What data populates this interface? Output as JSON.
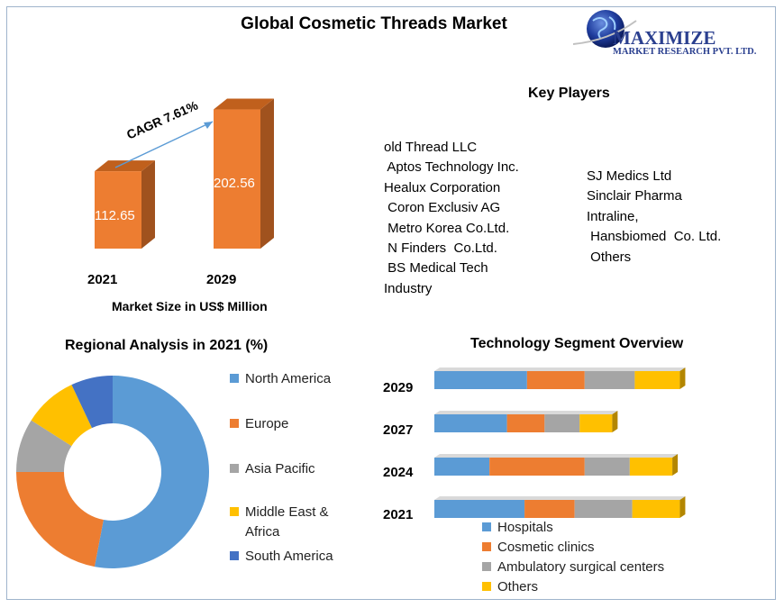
{
  "title": "Global Cosmetic Threads Market",
  "logo": {
    "name": "MAXIMIZE",
    "tagline": "MARKET RESEARCH PVT. LTD."
  },
  "market_size": {
    "cagr_label": "CAGR 7.61%",
    "caption": "Market Size in US$ Million"
  },
  "key_players": {
    "title": "Key Players",
    "column1": [
      "old Thread LLC",
      " Aptos Technology Inc.",
      "Healux Corporation",
      " Coron Exclusiv AG",
      " Metro Korea Co.Ltd.",
      " N Finders  Co.Ltd.",
      " BS Medical Tech",
      "Industry"
    ],
    "column2": [
      "SJ Medics Ltd",
      "Sinclair Pharma",
      "Intraline,",
      " Hansbiomed  Co. Ltd.",
      " Others"
    ]
  },
  "regional": {
    "title": "Regional Analysis in 2021 (%)"
  },
  "technology": {
    "title": "Technology Segment Overview"
  },
  "colors": {
    "blue": "#5b9bd5",
    "orange": "#ed7d31",
    "gray": "#a5a5a5",
    "yellow": "#ffc000",
    "darkblue": "#4472c4",
    "bar_orange": "#ed7d31",
    "bar_side": "#a0521e",
    "bar_top": "#c0601d"
  },
  "chart_data": [
    {
      "type": "bar",
      "categories": [
        "2021",
        "2029"
      ],
      "values": [
        112.65,
        202.56
      ],
      "xlabel": "Market Size in US$ Million",
      "annotations": [
        "CAGR 7.61%"
      ]
    },
    {
      "type": "pie",
      "title": "Regional Analysis in 2021 (%)",
      "labels": [
        "North America",
        "Europe",
        "Asia Pacific",
        "Middle East & Africa",
        "South America"
      ],
      "values": [
        53,
        22,
        9,
        9,
        7
      ],
      "donut": true,
      "legend": "right"
    },
    {
      "type": "bar",
      "orientation": "horizontal",
      "stacked": true,
      "title": "Technology Segment Overview",
      "categories": [
        "2029",
        "2027",
        "2024",
        "2021"
      ],
      "series": [
        {
          "name": "Hospitals",
          "values": [
            37,
            29,
            22,
            36
          ]
        },
        {
          "name": "Cosmetic clinics",
          "values": [
            23,
            15,
            38,
            20
          ]
        },
        {
          "name": "Ambulatory surgical centers",
          "values": [
            20,
            14,
            18,
            23
          ]
        },
        {
          "name": "Others",
          "values": [
            18,
            13,
            17,
            19
          ]
        }
      ],
      "legend": "bottom"
    }
  ]
}
